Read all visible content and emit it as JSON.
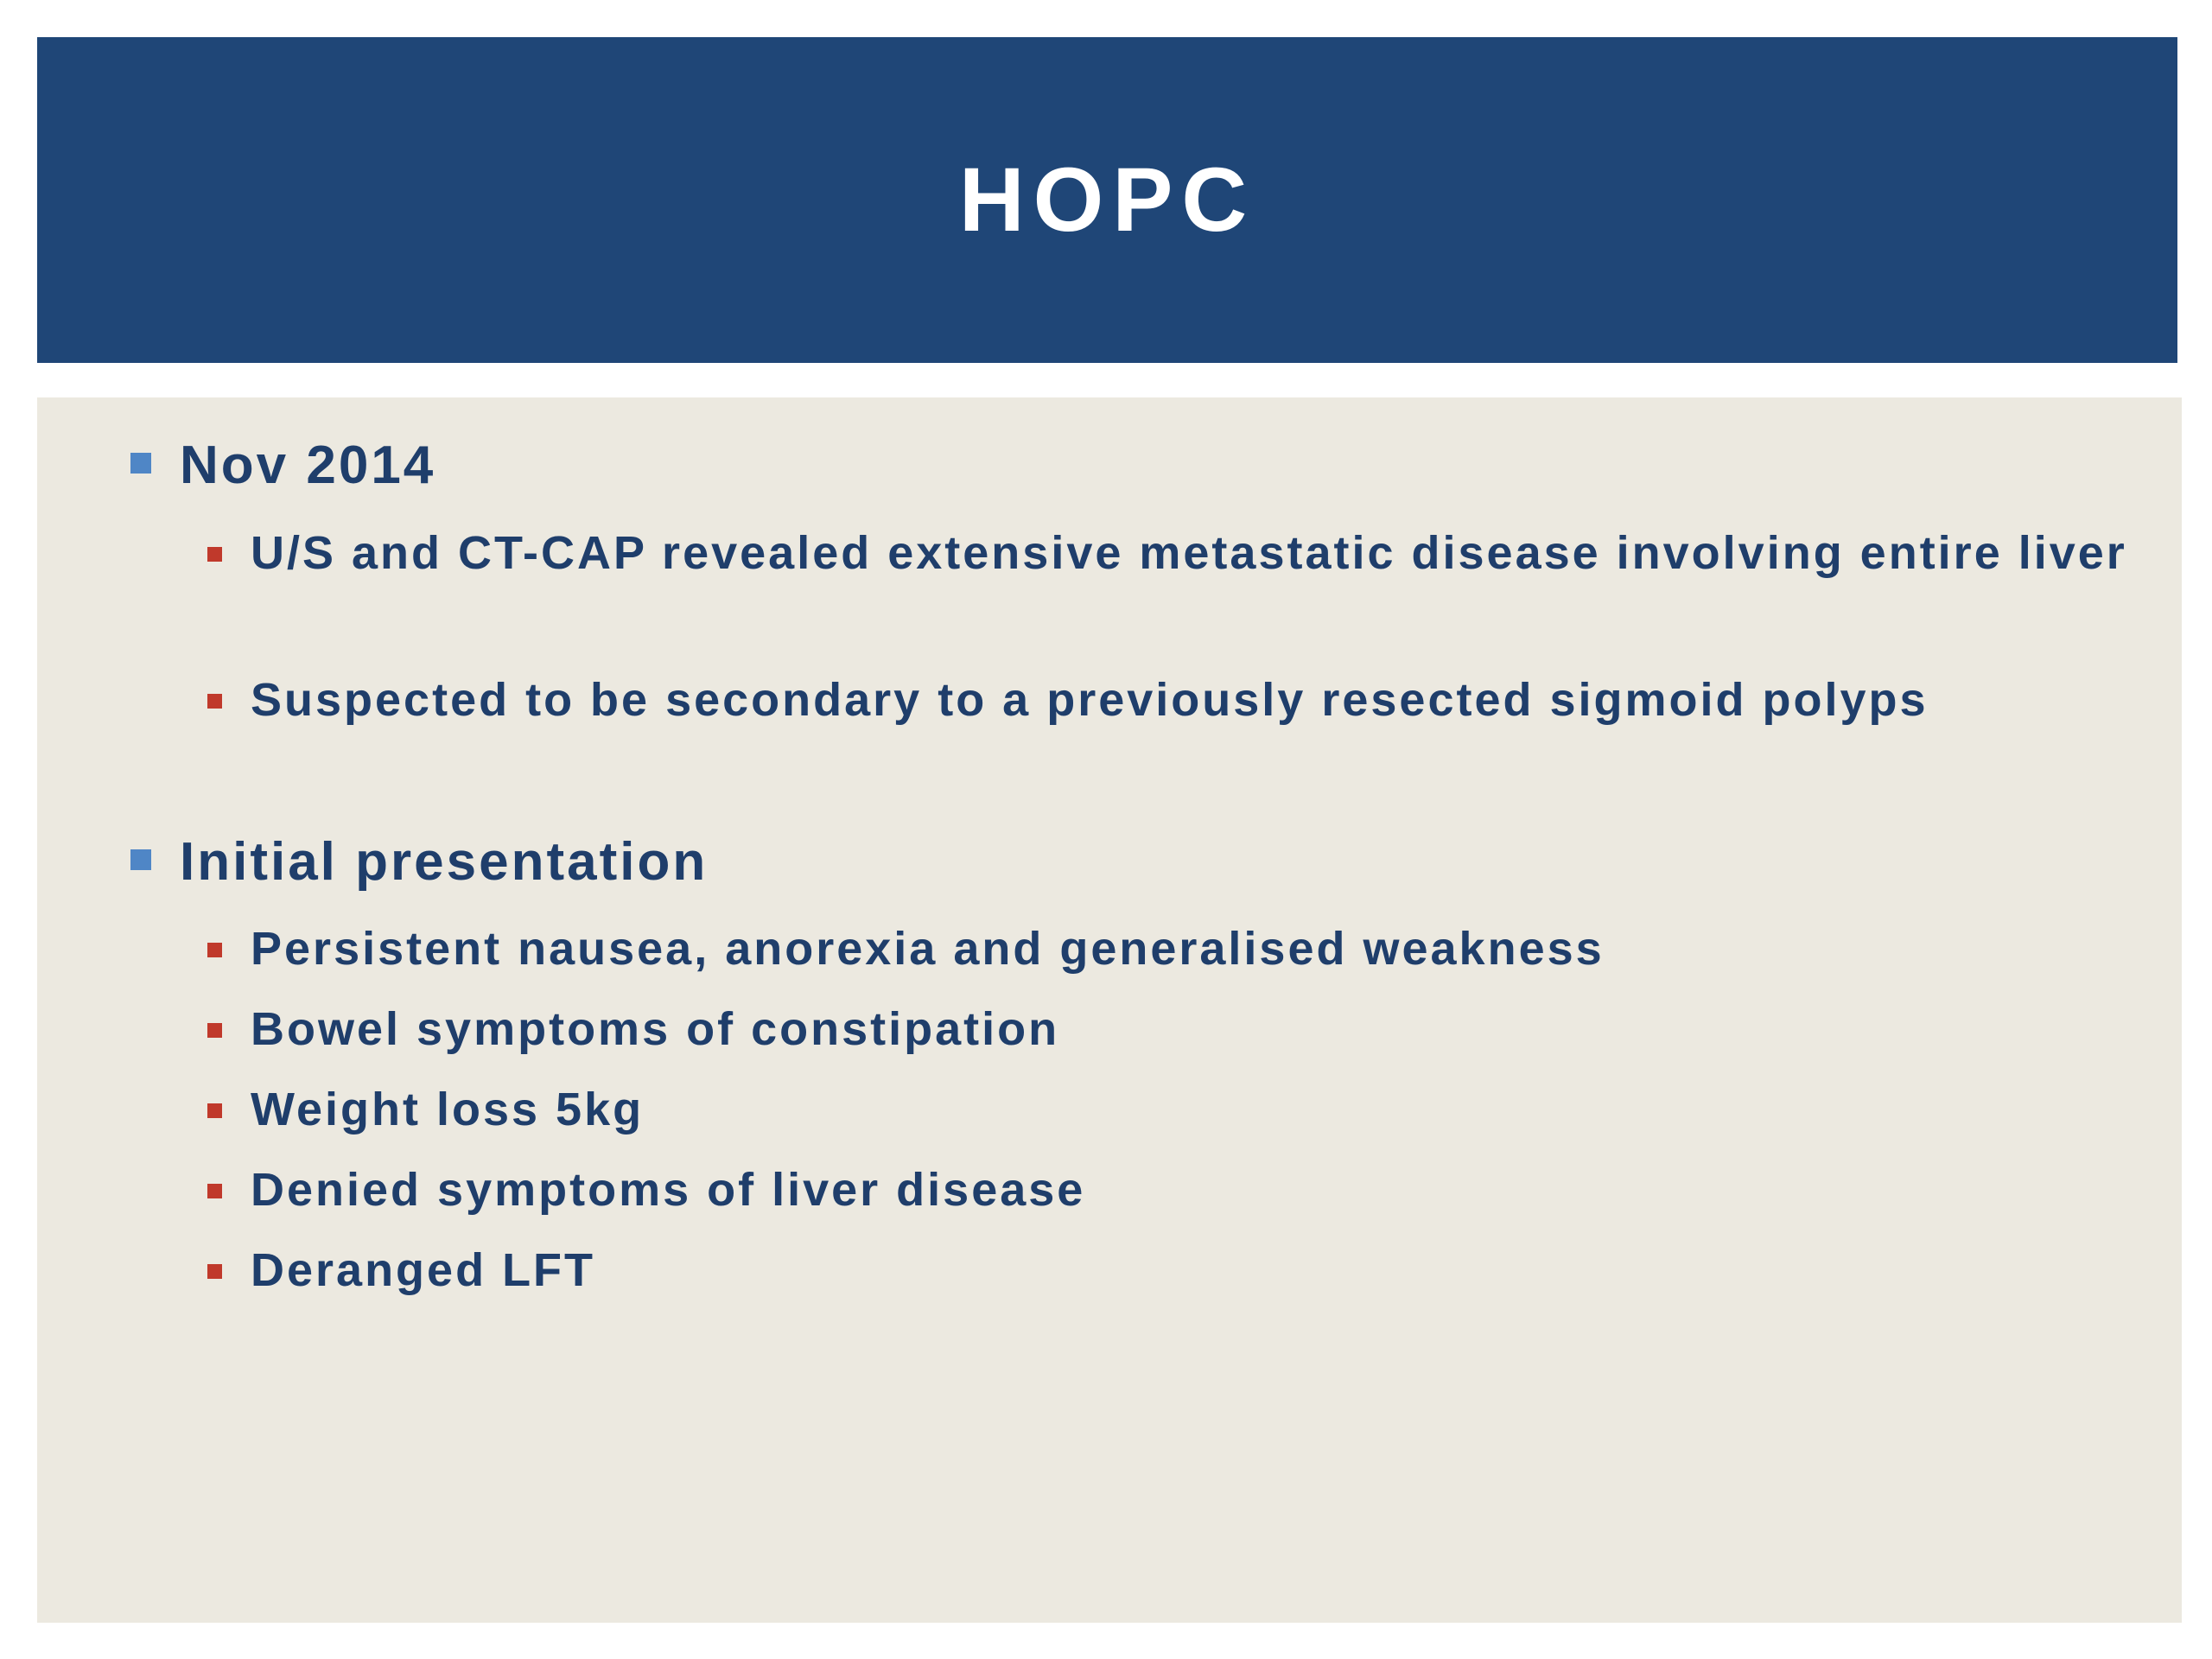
{
  "slide": {
    "title": "HOPC",
    "colors": {
      "title_band": "#1f4677",
      "title_text": "#ffffff",
      "content_background": "#ece9e0",
      "body_text": "#1f3e6b",
      "level1_bullet": "#4f86c6",
      "level2_bullet": "#c0392b"
    },
    "sections": [
      {
        "heading": "Nov 2014",
        "items": [
          "U/S and CT-CAP revealed extensive metastatic disease involving entire liver",
          "Suspected to be secondary to a previously resected sigmoid polyps"
        ]
      },
      {
        "heading": "Initial presentation",
        "items": [
          "Persistent nausea, anorexia and generalised weakness",
          "Bowel symptoms of constipation",
          "Weight loss 5kg",
          "Denied symptoms of liver disease",
          "Deranged LFT"
        ]
      }
    ]
  }
}
